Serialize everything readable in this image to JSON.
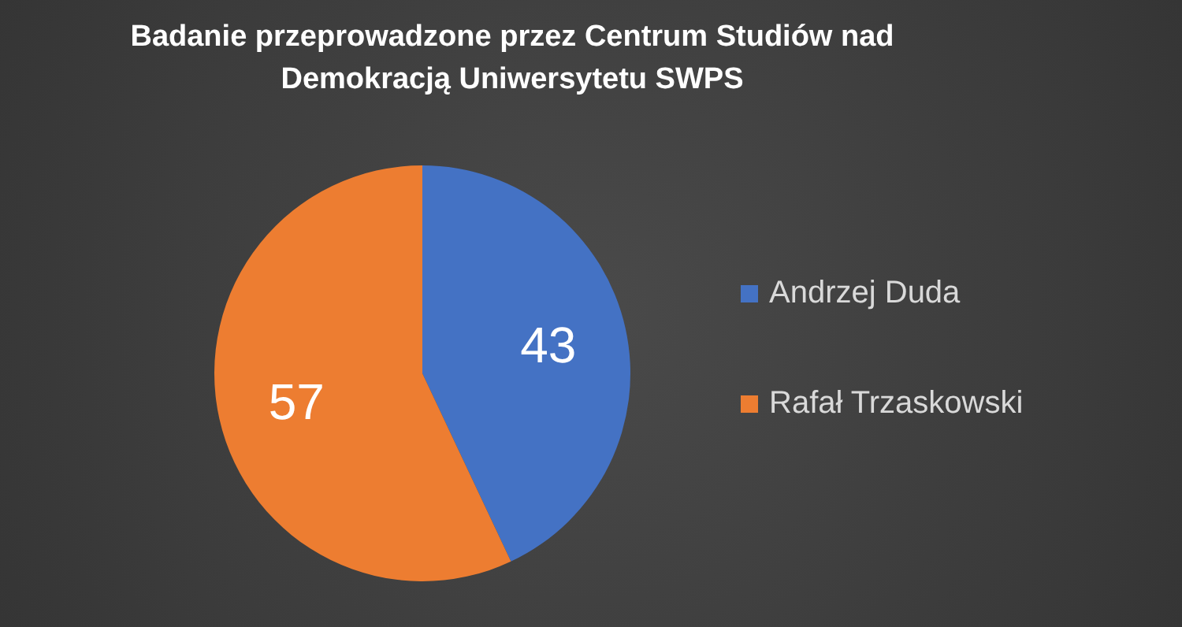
{
  "chart_data": {
    "type": "pie",
    "title": "Badanie przeprowadzone przez Centrum Studiów nad Demokracją Uniwersytetu SWPS",
    "categories": [
      "Andrzej Duda",
      "Rafał Trzaskowski"
    ],
    "values": [
      43,
      57
    ],
    "colors": [
      "#4472c4",
      "#ed7d31"
    ],
    "data_labels": true,
    "legend": "right"
  }
}
